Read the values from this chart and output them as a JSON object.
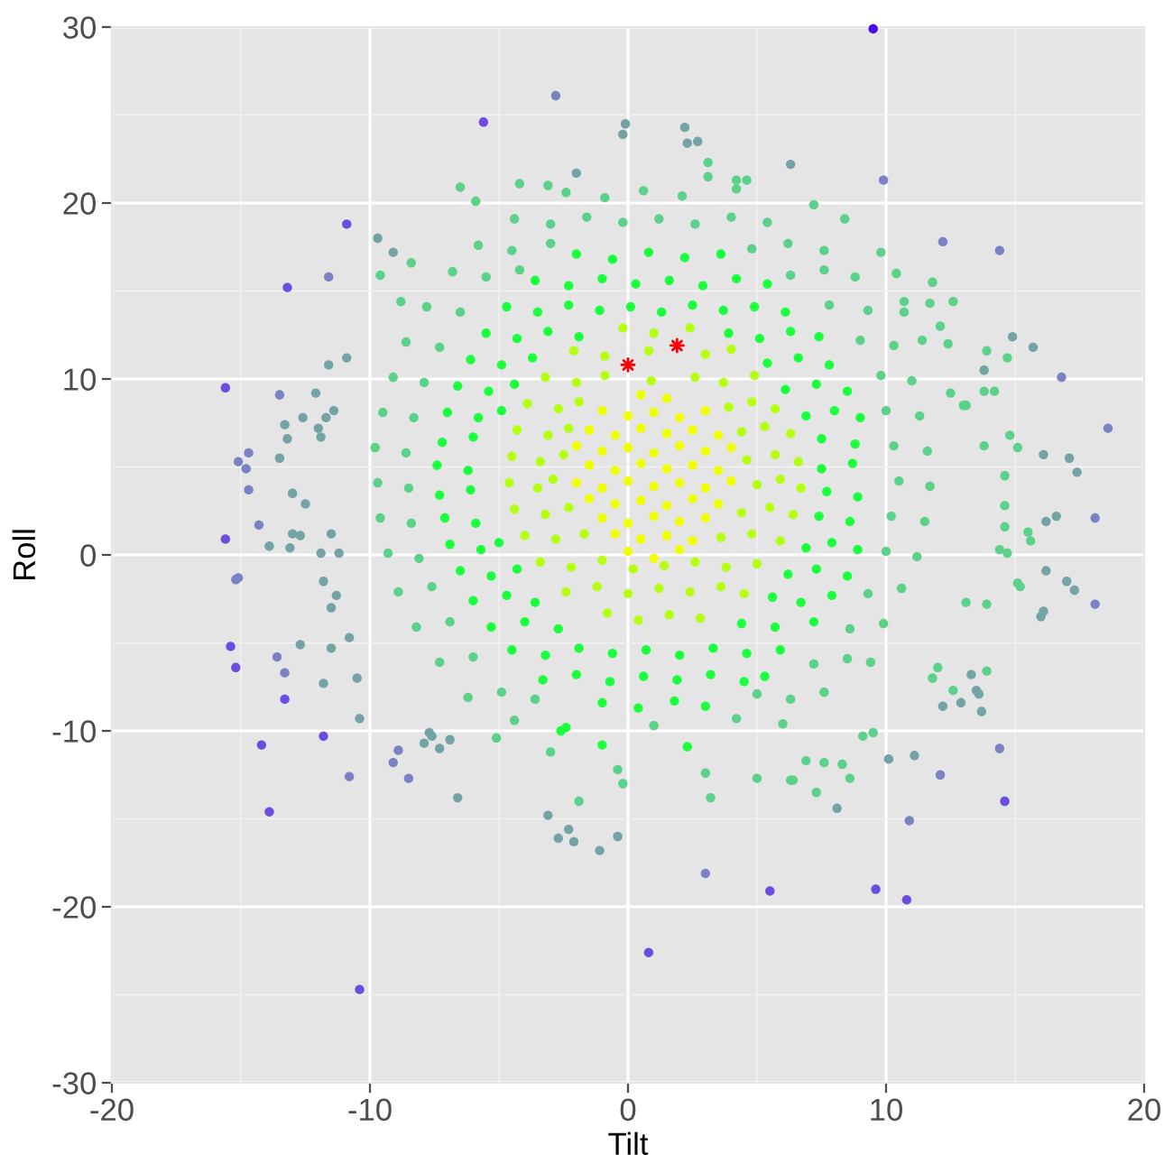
{
  "chart_data": {
    "type": "scatter",
    "xlabel": "Tilt",
    "ylabel": "Roll",
    "xlim": [
      -20,
      20
    ],
    "ylim": [
      -30,
      30
    ],
    "xticks": [
      -20,
      -10,
      0,
      10,
      20
    ],
    "yticks": [
      -30,
      -20,
      -10,
      0,
      10,
      20,
      30
    ],
    "grid": true,
    "marker": "circle",
    "series": [
      {
        "color": "#4b0aee",
        "x": [
          9.5
        ],
        "values": [
          29.9
        ]
      },
      {
        "color": "#6b4edf",
        "x": [
          -10.4,
          -14.2,
          -13.9,
          0.8,
          5.5,
          9.6,
          10.8,
          14.6,
          -15.6,
          -15.6,
          -15.4,
          -15.2,
          -13.3,
          -11.8,
          -13.2,
          -5.6,
          -10.9
        ],
        "values": [
          -24.7,
          -10.8,
          -14.6,
          -22.6,
          -19.1,
          -19.0,
          -19.6,
          -14.0,
          9.5,
          0.9,
          -5.2,
          -6.4,
          -8.2,
          -10.3,
          15.2,
          24.6,
          18.8
        ]
      },
      {
        "color": "#7a82c4",
        "x": [
          -2.8,
          -11.6,
          9.9,
          12.2,
          14.4,
          18.6,
          18.1,
          18.1,
          -10.8,
          -9.1,
          -8.9,
          -8.5,
          10.9,
          14.4,
          12.1,
          3.0,
          -15.1,
          -14.7,
          -14.8,
          -14.7,
          -15.1,
          -15.2,
          -13.6,
          -13.3,
          -13.5,
          16.8,
          -14.3
        ],
        "values": [
          26.1,
          15.8,
          21.3,
          17.8,
          17.3,
          7.2,
          -2.8,
          2.1,
          -12.6,
          -11.8,
          -11.1,
          -12.7,
          -15.1,
          -11.0,
          -12.5,
          -18.1,
          5.3,
          5.8,
          4.9,
          3.7,
          -1.3,
          -1.4,
          -5.8,
          -6.7,
          9.1,
          10.1,
          1.7
        ]
      },
      {
        "color": "#74a3a5",
        "x": [
          -9.7,
          -0.1,
          -0.2,
          2.2,
          2.3,
          2.7,
          -9.1,
          -13.3,
          -13.2,
          -13.5,
          -13.0,
          -12.5,
          -13.9,
          -13.1,
          -13.0,
          -12.7,
          -12.7,
          -11.8,
          -11.5,
          -10.5,
          -11.5,
          -10.4,
          -7.9,
          -7.7,
          -7.6,
          -7.3,
          -6.9,
          -6.6,
          -3.1,
          -2.7,
          -2.3,
          -2.1,
          -1.1,
          -0.4,
          8.1,
          11.1,
          10.1,
          13.7,
          13.3,
          13.5,
          13.6,
          12.9,
          12.2,
          17.1,
          16.1,
          17.4,
          16.6,
          16.2,
          17.0,
          17.3,
          16.1,
          16.0,
          16.2,
          14.9,
          15.7,
          13.8,
          6.3,
          -2.0,
          -11.6,
          -10.9,
          -12.6,
          -12.1,
          -12.0,
          -11.9,
          -11.4,
          -11.7,
          -11.5,
          -11.9,
          -11.2,
          -11.8,
          -11.3,
          -10.8
        ],
        "values": [
          18.0,
          24.5,
          23.9,
          24.3,
          23.4,
          23.5,
          17.2,
          7.4,
          6.6,
          5.5,
          3.5,
          2.9,
          0.5,
          0.4,
          1.2,
          1.1,
          -5.1,
          -7.3,
          -5.3,
          -7.0,
          -3.0,
          -9.3,
          -10.7,
          -10.1,
          -10.3,
          -11.0,
          -10.5,
          -13.8,
          -14.8,
          -16.1,
          -15.6,
          -16.3,
          -16.8,
          -16.0,
          -14.4,
          -11.4,
          -11.6,
          -8.9,
          -6.8,
          -7.7,
          -7.9,
          -8.4,
          -8.6,
          5.5,
          5.7,
          4.7,
          2.2,
          1.9,
          -1.5,
          -2.0,
          -3.2,
          -3.5,
          -0.9,
          12.4,
          11.8,
          10.5,
          22.2,
          21.7,
          10.8,
          11.2,
          7.8,
          9.2,
          7.2,
          6.7,
          8.2,
          7.8,
          1.2,
          0.1,
          0.1,
          -1.5,
          -2.3,
          -4.7
        ]
      },
      {
        "color": "#5bd18a",
        "x": [
          -6.5,
          -9.6,
          -8.4,
          -4.2,
          -3.1,
          -5.9,
          -8.8,
          3.1,
          3.1,
          4.2,
          4.6,
          4.2,
          8.4,
          7.2,
          9.8,
          10.4,
          11.8,
          12.6,
          11.7,
          10.7,
          10.7,
          12.1,
          13.9,
          14.7,
          11.4,
          12.4,
          14.8,
          15.1,
          15.5,
          15.6,
          15.1,
          15.2,
          13.9,
          13.1,
          13.9,
          12.6,
          11.8,
          12.0,
          14.6,
          14.6,
          14.6,
          14.7,
          14.4,
          13.8,
          13.8,
          14.2,
          12.5,
          13.0,
          13.1,
          -5.1,
          -1.9,
          -3.0,
          -0.4,
          -0.2,
          3.2,
          3.0,
          5.0,
          6.3,
          6.4,
          8.6,
          8.3,
          9.1,
          9.5,
          6.9,
          7.6,
          7.3,
          -4.4,
          1.0,
          4.2,
          6.0,
          -6.2,
          -4.9,
          -3.6,
          5.0,
          6.3,
          7.6,
          -7.3,
          -6.0,
          7.2,
          8.5,
          9.4,
          -8.2,
          -6.9,
          8.6,
          9.9,
          -8.9,
          -7.6,
          9.3,
          10.6,
          -9.3,
          -8.1,
          10.0,
          11.2,
          -9.6,
          -8.4,
          10.2,
          11.5,
          -9.7,
          -8.5,
          10.5,
          11.7,
          -9.8,
          -8.6,
          10.3,
          11.6,
          -9.5,
          -8.3,
          10.0,
          11.3,
          -9.1,
          -7.9,
          9.8,
          11.0,
          -8.6,
          -7.3,
          9.0,
          10.3,
          -7.8,
          -6.5,
          7.8,
          9.3,
          -6.8,
          -5.5,
          -4.2,
          6.3,
          7.6,
          8.8,
          -5.8,
          -4.5,
          -3.0,
          4.8,
          6.2,
          7.6,
          -4.4,
          -3.0,
          -1.6,
          -0.2,
          1.2,
          2.6,
          4.0,
          5.4,
          -2.4,
          -0.9,
          0.6,
          2.1
        ],
        "values": [
          20.9,
          15.9,
          16.6,
          21.1,
          21.0,
          20.1,
          14.4,
          22.3,
          21.5,
          21.3,
          21.3,
          20.8,
          19.1,
          19.9,
          17.2,
          16.0,
          15.5,
          14.4,
          14.3,
          14.4,
          13.8,
          13.0,
          11.6,
          11.2,
          12.2,
          12.0,
          6.8,
          6.1,
          1.3,
          0.8,
          -1.6,
          -1.8,
          -2.8,
          -2.7,
          -6.6,
          -7.7,
          -7.0,
          -6.4,
          4.5,
          2.8,
          1.6,
          0.1,
          0.3,
          6.2,
          9.3,
          9.3,
          9.2,
          8.5,
          8.5,
          -10.4,
          -14.0,
          -11.2,
          -12.2,
          -13.0,
          -13.8,
          -12.4,
          -12.7,
          -12.8,
          -12.8,
          -12.7,
          -11.9,
          -10.3,
          -10.1,
          -11.7,
          -11.8,
          -13.5,
          -9.4,
          -9.7,
          -9.3,
          -9.6,
          -8.1,
          -7.8,
          -8.2,
          -7.9,
          -8.2,
          -7.8,
          -6.1,
          -5.8,
          -6.2,
          -5.9,
          -6.1,
          -4.1,
          -3.8,
          -4.2,
          -3.9,
          -2.1,
          -1.8,
          -2.2,
          -1.9,
          0.1,
          -0.2,
          0.2,
          -0.1,
          2.1,
          1.8,
          2.2,
          1.9,
          4.1,
          3.8,
          4.2,
          3.9,
          6.1,
          5.8,
          6.2,
          5.9,
          8.1,
          7.8,
          8.2,
          7.9,
          10.1,
          9.8,
          10.2,
          9.9,
          12.1,
          11.8,
          12.2,
          11.9,
          14.1,
          13.8,
          14.2,
          13.9,
          16.1,
          15.8,
          16.2,
          15.9,
          16.2,
          15.8,
          17.6,
          17.3,
          17.7,
          17.4,
          17.7,
          17.3,
          19.1,
          18.8,
          19.2,
          18.9,
          19.1,
          18.8,
          19.2,
          18.9,
          20.6,
          20.3,
          20.7,
          20.4
        ]
      },
      {
        "color": "#1cff3e",
        "x": [
          -1.0,
          0.4,
          1.8,
          3.0,
          -3.3,
          -2.0,
          -0.7,
          0.6,
          1.9,
          3.2,
          4.5,
          5.3,
          -4.5,
          -3.2,
          -1.9,
          -0.6,
          0.7,
          2.0,
          3.3,
          4.6,
          5.9,
          -5.3,
          -4.0,
          -2.7,
          4.4,
          5.7,
          7.2,
          -6.0,
          -4.7,
          -3.6,
          5.6,
          6.7,
          7.9,
          -6.5,
          -5.3,
          -4.3,
          6.2,
          7.3,
          8.5,
          -6.9,
          -5.7,
          -5.0,
          6.9,
          7.9,
          8.9,
          -7.1,
          -5.9,
          7.4,
          8.6,
          -7.3,
          -6.1,
          7.7,
          8.9,
          -7.4,
          -6.2,
          7.5,
          8.7,
          -7.2,
          -6.0,
          7.5,
          8.8,
          -7.0,
          -5.8,
          -4.9,
          6.9,
          8.0,
          9.0,
          -6.6,
          -5.4,
          -4.4,
          6.1,
          7.3,
          8.5,
          -6.1,
          -4.9,
          -3.7,
          5.4,
          6.6,
          7.8,
          -5.5,
          -4.3,
          -3.1,
          -1.9,
          3.9,
          5.1,
          6.3,
          7.4,
          -4.7,
          -3.5,
          -2.3,
          -1.1,
          0.1,
          1.3,
          2.5,
          3.7,
          4.9,
          6.1,
          -3.6,
          -2.3,
          -1.0,
          0.3,
          1.6,
          2.9,
          4.2,
          5.4,
          -2.0,
          -0.6,
          0.8,
          2.2,
          3.6,
          -2.6,
          -2.4,
          -1.0,
          2.3
        ],
        "values": [
          -8.4,
          -8.7,
          -8.3,
          -8.6,
          -7.1,
          -6.8,
          -7.2,
          -6.9,
          -7.1,
          -6.8,
          -7.2,
          -6.9,
          -5.4,
          -5.7,
          -5.3,
          -5.6,
          -5.4,
          -5.7,
          -5.3,
          -5.6,
          -5.4,
          -4.1,
          -3.8,
          -4.2,
          -3.9,
          -4.1,
          -3.8,
          -2.6,
          -2.3,
          -2.7,
          -2.4,
          -2.7,
          -2.3,
          -0.9,
          -1.2,
          -0.8,
          -1.1,
          -0.8,
          -1.2,
          0.6,
          0.3,
          0.7,
          0.4,
          0.7,
          0.3,
          2.1,
          1.8,
          2.2,
          1.9,
          3.4,
          3.7,
          3.6,
          3.3,
          5.1,
          4.8,
          4.9,
          5.2,
          6.4,
          6.7,
          6.6,
          6.3,
          8.1,
          7.8,
          8.2,
          7.9,
          8.2,
          7.8,
          9.6,
          9.3,
          9.7,
          9.4,
          9.7,
          9.3,
          11.1,
          10.8,
          11.2,
          10.9,
          11.2,
          10.8,
          12.6,
          12.3,
          12.7,
          12.4,
          12.6,
          12.3,
          12.7,
          12.4,
          14.1,
          13.8,
          14.2,
          13.9,
          14.1,
          13.8,
          14.2,
          13.9,
          14.1,
          13.8,
          15.6,
          15.3,
          15.7,
          15.4,
          15.6,
          15.3,
          15.7,
          15.4,
          17.1,
          16.8,
          17.2,
          16.9,
          17.1,
          -10.0,
          -9.8,
          -10.8,
          -10.9
        ]
      },
      {
        "color": "#b4ff14",
        "x": [
          -0.8,
          0.4,
          1.6,
          2.8,
          -2.4,
          -1.2,
          0.0,
          1.2,
          2.4,
          3.6,
          4.5,
          -3.4,
          -2.2,
          -1.0,
          0.2,
          1.4,
          2.6,
          3.8,
          5.0,
          -4.0,
          -2.8,
          -1.7,
          3.6,
          4.8,
          5.9,
          -4.4,
          -3.2,
          -2.3,
          4.4,
          5.5,
          6.4,
          -4.6,
          -3.5,
          -2.9,
          5.0,
          5.9,
          6.7,
          -4.5,
          -3.4,
          -2.5,
          4.6,
          5.7,
          6.6,
          -4.3,
          -3.1,
          -2.3,
          4.4,
          5.3,
          6.3,
          -3.9,
          -2.7,
          -1.9,
          3.9,
          4.8,
          5.7,
          -3.2,
          -2.0,
          -0.9,
          0.9,
          2.6,
          3.7,
          4.9,
          -2.1,
          -0.9,
          0.8,
          3.0,
          4.0,
          -0.2,
          1.0,
          2.4
        ],
        "values": [
          -3.3,
          -3.7,
          -3.4,
          -3.6,
          -2.1,
          -1.8,
          -2.2,
          -1.9,
          -2.1,
          -1.8,
          -2.2,
          -0.4,
          -0.7,
          -0.3,
          -0.8,
          -0.6,
          -0.4,
          -0.7,
          -0.5,
          1.1,
          0.9,
          1.2,
          1.0,
          1.2,
          0.8,
          2.6,
          2.3,
          2.7,
          2.4,
          2.7,
          2.3,
          4.1,
          3.8,
          4.3,
          4.0,
          4.3,
          3.8,
          5.6,
          5.3,
          5.7,
          5.4,
          5.7,
          5.3,
          7.1,
          6.8,
          7.2,
          7.0,
          7.3,
          6.9,
          8.6,
          8.3,
          8.7,
          8.4,
          8.7,
          8.3,
          10.1,
          9.8,
          10.2,
          9.9,
          10.1,
          9.8,
          10.2,
          11.6,
          11.3,
          11.6,
          11.4,
          11.7,
          12.9,
          12.6,
          12.9
        ]
      },
      {
        "color": "#f0ff00",
        "x": [
          0,
          1,
          2,
          -0.5,
          0.5,
          1.5,
          2.5,
          -1,
          0,
          1,
          2,
          3,
          -1.5,
          -0.5,
          0.5,
          1.5,
          2.5,
          3.5,
          -2,
          -1,
          0,
          1,
          2,
          3,
          4,
          -1.5,
          -0.5,
          0.5,
          1.5,
          2.5,
          3.5,
          -2,
          -1,
          0,
          1,
          2,
          3,
          4,
          -1.5,
          -0.5,
          0.5,
          1.5,
          2.5,
          3.5,
          -1,
          0,
          1,
          2,
          3,
          0.5,
          1.5
        ],
        "values": [
          0.2,
          -0.2,
          0.3,
          1.2,
          0.9,
          1.1,
          0.8,
          2.1,
          1.8,
          2.2,
          1.9,
          2.1,
          3.2,
          2.9,
          3.1,
          2.8,
          3.2,
          2.9,
          4.1,
          3.8,
          4.2,
          3.9,
          4.1,
          3.8,
          4.2,
          5.1,
          4.8,
          5.2,
          4.9,
          5.1,
          4.8,
          6.2,
          5.9,
          6.1,
          5.8,
          6.2,
          5.9,
          6.1,
          7.1,
          6.8,
          7.2,
          6.9,
          7.1,
          6.8,
          8.2,
          7.9,
          8.1,
          7.8,
          8.2,
          9.1,
          8.9
        ]
      },
      {
        "color": "#ff0000",
        "marker": "star",
        "x": [
          0.0,
          1.9
        ],
        "values": [
          10.8,
          11.9
        ]
      }
    ]
  }
}
